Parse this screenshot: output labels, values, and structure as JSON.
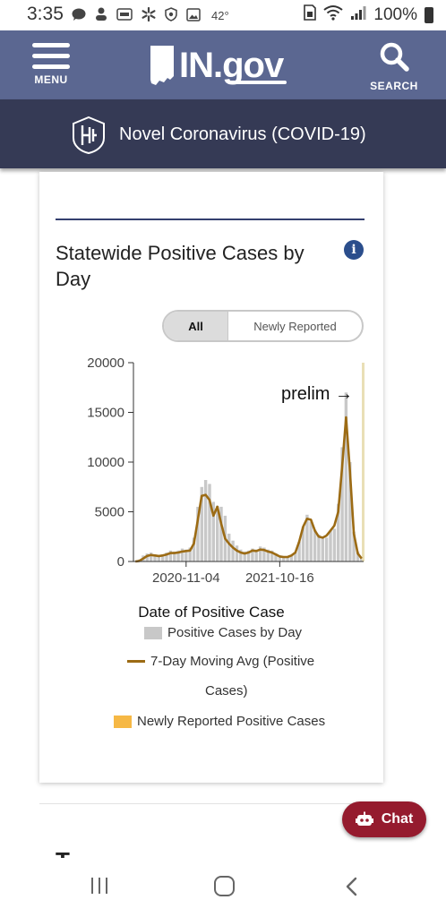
{
  "status_bar": {
    "time": "3:35",
    "temperature": "42°",
    "battery": "100%",
    "left_icons": [
      "chat-bubble-icon",
      "notification-icon",
      "blast-icon",
      "walmart-icon",
      "shield-icon",
      "gallery-icon"
    ],
    "right_icons": [
      "sim-icon",
      "wifi-icon",
      "signal-icon",
      "battery-icon"
    ]
  },
  "header": {
    "menu_label": "MENU",
    "logo_text": "IN.gov",
    "search_label": "SEARCH",
    "colors": {
      "header_bg": "#5b6791",
      "subheader_bg": "#353a55"
    }
  },
  "subheader": {
    "title": "Novel Coronavirus (COVID-19)"
  },
  "card": {
    "title": "Statewide Positive Cases by Day",
    "info_icon": "i",
    "toggle": {
      "all_label": "All",
      "newly_label": "Newly Reported",
      "selected": "All"
    }
  },
  "chart_data": {
    "type": "bar",
    "x_tick_labels": [
      "2020-11-04",
      "2021-10-16"
    ],
    "xlabel": "Date of Positive Case",
    "ylabel": "",
    "y_ticks": [
      0,
      5000,
      10000,
      15000,
      20000
    ],
    "ylim": [
      0,
      20000
    ],
    "annotation": "prelim →",
    "series": [
      {
        "name": "Positive Cases by Day",
        "kind": "bar",
        "color": "#c8c8c8",
        "values_weekly": [
          50,
          200,
          600,
          800,
          900,
          700,
          600,
          700,
          900,
          1100,
          1000,
          1100,
          1300,
          1200,
          1400,
          2400,
          5500,
          7500,
          8200,
          7800,
          6000,
          5600,
          5500,
          4600,
          2800,
          2100,
          1600,
          1200,
          1000,
          1100,
          1300,
          1200,
          1500,
          1400,
          1200,
          1100,
          800,
          600,
          500,
          500,
          600,
          900,
          2000,
          3500,
          4700,
          4000,
          3200,
          2700,
          2500,
          2400,
          3100,
          3300,
          5800,
          11500,
          17000,
          10000,
          3000,
          1000,
          300
        ]
      },
      {
        "name": "7-Day Moving Avg (Positive Cases)",
        "kind": "line",
        "color": "#9c6b14",
        "values_weekly": [
          0,
          50,
          300,
          550,
          650,
          600,
          550,
          600,
          700,
          850,
          850,
          900,
          1000,
          1050,
          1100,
          1800,
          4200,
          6600,
          6700,
          6200,
          4600,
          5500,
          3800,
          2300,
          1800,
          1400,
          1100,
          900,
          800,
          900,
          1100,
          1050,
          1200,
          1150,
          1000,
          900,
          700,
          500,
          450,
          450,
          600,
          900,
          2000,
          3500,
          4300,
          4200,
          3100,
          2500,
          2400,
          2600,
          3100,
          3600,
          5000,
          9500,
          14500,
          9000,
          2800,
          800,
          300
        ]
      },
      {
        "name": "Newly Reported Positive Cases",
        "kind": "bar",
        "color": "#f6b845",
        "values_weekly": []
      }
    ],
    "grid": false,
    "legend_position": "bottom"
  },
  "legend": {
    "cases": "Positive Cases by Day",
    "avg_line1": "7-Day Moving Avg (Positive",
    "avg_line2": "Cases)",
    "newly": "Newly Reported Positive Cases"
  },
  "chat": {
    "label": "Chat"
  },
  "next_section": {
    "text": "T"
  }
}
